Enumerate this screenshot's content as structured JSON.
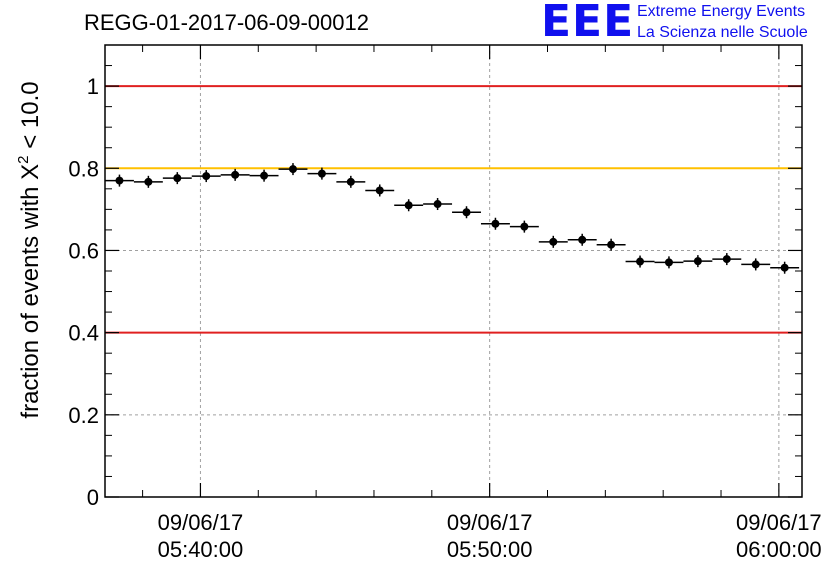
{
  "chart_data": {
    "type": "scatter",
    "title": "REGG-01-2017-06-09-00012",
    "xlabel": "",
    "ylabel": "fraction of events with χ² < 10.0",
    "ylabel_parts": {
      "pre": "fraction of events with X",
      "sup": "2",
      "post": " < 10.0"
    },
    "x_unit": "minutes after 09/06/17 05:30:00",
    "xlim": [
      6.7,
      30.8
    ],
    "ylim": [
      0,
      1.1
    ],
    "x_ticks": [
      {
        "x": 10,
        "date": "09/06/17",
        "time": "05:40:00"
      },
      {
        "x": 20,
        "date": "09/06/17",
        "time": "05:50:00"
      },
      {
        "x": 30,
        "date": "09/06/17",
        "time": "06:00:00"
      }
    ],
    "y_ticks": [
      0,
      0.2,
      0.4,
      0.6,
      0.8,
      1
    ],
    "y_tick_labels": [
      "0",
      "0.2",
      "0.4",
      "0.6",
      "0.8",
      "1"
    ],
    "grid": true,
    "reference_lines": [
      {
        "y": 1.0,
        "color": "#e02020"
      },
      {
        "y": 0.8,
        "color": "#ffc000"
      },
      {
        "y": 0.4,
        "color": "#e02020"
      }
    ],
    "series": [
      {
        "x_half_width": 0.5,
        "x": [
          7.2,
          8.2,
          9.2,
          10.2,
          11.2,
          12.2,
          13.2,
          14.2,
          15.2,
          16.2,
          17.2,
          18.2,
          19.2,
          20.2,
          21.2,
          22.2,
          23.2,
          24.2,
          25.2,
          26.2,
          27.2,
          28.2,
          29.2,
          30.2
        ],
        "y": [
          0.77,
          0.767,
          0.776,
          0.781,
          0.784,
          0.782,
          0.798,
          0.787,
          0.767,
          0.746,
          0.71,
          0.713,
          0.693,
          0.665,
          0.658,
          0.621,
          0.626,
          0.614,
          0.573,
          0.571,
          0.574,
          0.579,
          0.566,
          0.558
        ]
      }
    ]
  },
  "logo": {
    "mark": "EEE",
    "line1": "Extreme Energy Events",
    "line2": "La Scienza nelle Scuole",
    "color": "#1010ee"
  }
}
